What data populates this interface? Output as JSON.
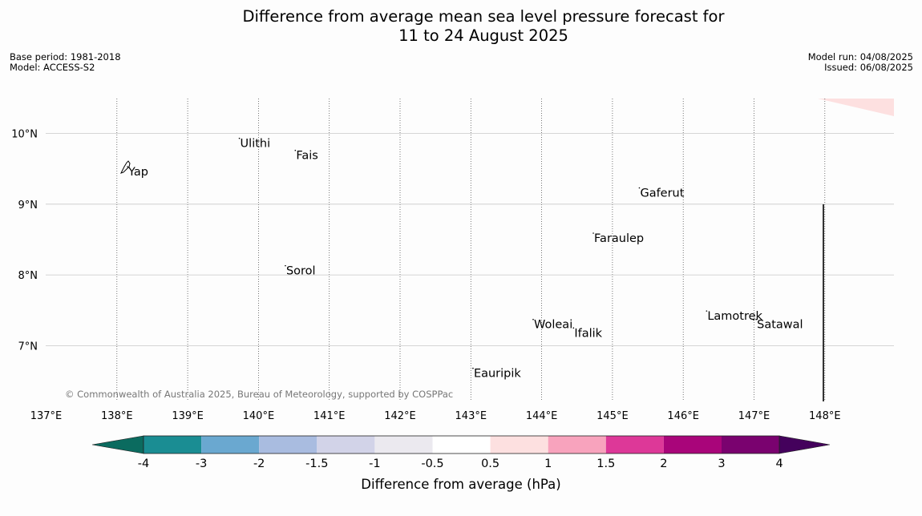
{
  "header": {
    "title_line1": "Difference from average mean sea level pressure forecast for",
    "title_line2": "11 to 24 August 2025",
    "base_period": "Base period: 1981-2018",
    "model": "Model: ACCESS-S2",
    "model_run": "Model run: 04/08/2025",
    "issued": "Issued: 06/08/2025"
  },
  "map": {
    "lon_labels": [
      "137°E",
      "138°E",
      "139°E",
      "140°E",
      "141°E",
      "142°E",
      "143°E",
      "144°E",
      "145°E",
      "146°E",
      "147°E",
      "148°E"
    ],
    "lat_labels": [
      "10°N",
      "9°N",
      "8°N",
      "7°N"
    ],
    "places": [
      {
        "name": "Ulithi",
        "lon": 139.73,
        "lat": 9.93
      },
      {
        "name": "Fais",
        "lon": 140.52,
        "lat": 9.76
      },
      {
        "name": "Yap",
        "lon": 138.15,
        "lat": 9.53
      },
      {
        "name": "Gaferut",
        "lon": 145.38,
        "lat": 9.23
      },
      {
        "name": "Faraulep",
        "lon": 144.73,
        "lat": 8.59
      },
      {
        "name": "Sorol",
        "lon": 140.38,
        "lat": 8.13
      },
      {
        "name": "Lamotrek",
        "lon": 146.33,
        "lat": 7.49
      },
      {
        "name": "Woleai",
        "lon": 143.88,
        "lat": 7.37
      },
      {
        "name": "Ifalik",
        "lon": 144.45,
        "lat": 7.25
      },
      {
        "name": "Satawal",
        "lon": 147.03,
        "lat": 7.37
      },
      {
        "name": "Eauripik",
        "lon": 143.03,
        "lat": 6.68
      }
    ],
    "copyright": "© Commonwealth of Australia 2025, Bureau of Meteorology, supported by COSPPac"
  },
  "colorbar": {
    "label": "Difference from average (hPa)",
    "ticks": [
      "-4",
      "-3",
      "-2",
      "-1.5",
      "-1",
      "-0.5",
      "0.5",
      "1",
      "1.5",
      "2",
      "3",
      "4"
    ],
    "colors": [
      "#0b6b5f",
      "#1a8d93",
      "#6aa8d0",
      "#a9bce0",
      "#d2d3e8",
      "#ebe9ef",
      "#ffffff",
      "#fde0e0",
      "#f8a3bd",
      "#dd3898",
      "#a9057a",
      "#7a026f",
      "#44015c"
    ]
  }
}
